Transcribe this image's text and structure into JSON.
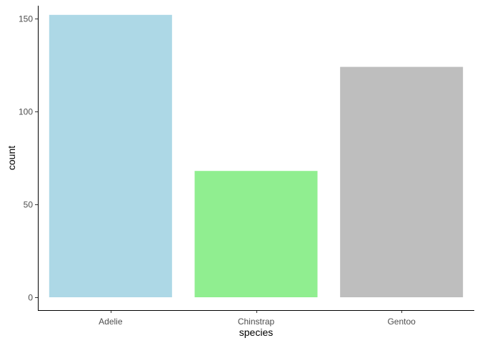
{
  "chart_data": {
    "type": "bar",
    "categories": [
      "Adelie",
      "Chinstrap",
      "Gentoo"
    ],
    "values": [
      152,
      68,
      124
    ],
    "colors": [
      "#ADD8E6",
      "#90EE90",
      "#BEBEBE"
    ],
    "xlabel": "species",
    "ylabel": "count",
    "ylim": [
      0,
      160
    ],
    "yticks": [
      0,
      50,
      100,
      150
    ],
    "grid": false,
    "legend": "none"
  }
}
